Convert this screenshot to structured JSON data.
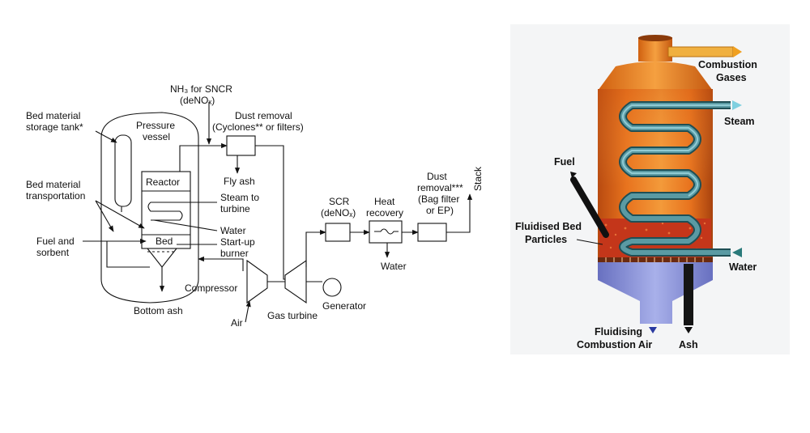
{
  "left_diagram": {
    "nh3_line1": "NH₃ for SNCR",
    "nh3_line2": "(deNOₓ)",
    "dust_removal_line1": "Dust removal",
    "dust_removal_line2": "(Cyclones** or filters)",
    "bed_storage_line1": "Bed material",
    "bed_storage_line2": "storage tank*",
    "pressure_vessel_line1": "Pressure",
    "pressure_vessel_line2": "vessel",
    "reactor": "Reactor",
    "fly_ash": "Fly ash",
    "bed_transport_line1": "Bed material",
    "bed_transport_line2": "transportation",
    "steam_line1": "Steam to",
    "steam_line2": "turbine",
    "water": "Water",
    "fuel_line1": "Fuel and",
    "fuel_line2": "sorbent",
    "bed": "Bed",
    "startup_line1": "Start-up",
    "startup_line2": "burner",
    "compressor": "Compressor",
    "bottom_ash": "Bottom ash",
    "air": "Air",
    "gas_turbine": "Gas turbine",
    "generator": "Generator",
    "scr_line1": "SCR",
    "scr_line2": "(deNOₓ)",
    "heat_line1": "Heat",
    "heat_line2": "recovery",
    "water2": "Water",
    "dust2_line1": "Dust",
    "dust2_line2": "removal***",
    "dust2_line3": "(Bag filter",
    "dust2_line4": "or EP)",
    "stack": "Stack"
  },
  "right_diagram": {
    "combustion_gases_line1": "Combustion",
    "combustion_gases_line2": "Gases",
    "steam": "Steam",
    "fuel": "Fuel",
    "fluidised_line1": "Fluidised Bed",
    "fluidised_line2": "Particles",
    "water": "Water",
    "fluidising_line1": "Fluidising",
    "fluidising_line2": "Combustion Air",
    "ash": "Ash"
  },
  "colors": {
    "vessel_orange": "#e8731e",
    "bed_particles": "#c4361a",
    "coil_teal": "#3f7f87",
    "air_plenum": "#8f97d8",
    "outlet_arrow": "#f0a020",
    "steam_arrow": "#7fd0e0"
  }
}
